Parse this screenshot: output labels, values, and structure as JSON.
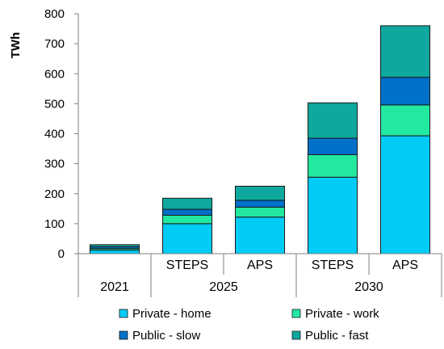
{
  "chart_data": {
    "type": "bar",
    "stacked": true,
    "ylabel": "TWh",
    "xlabel": "",
    "ylim": [
      0,
      800
    ],
    "yticks": [
      0,
      100,
      200,
      300,
      400,
      500,
      600,
      700,
      800
    ],
    "grid": false,
    "legend_position": "bottom",
    "groups": [
      {
        "label": "2021",
        "categories": [
          ""
        ]
      },
      {
        "label": "2025",
        "categories": [
          "STEPS",
          "APS"
        ]
      },
      {
        "label": "2030",
        "categories": [
          "STEPS",
          "APS"
        ]
      }
    ],
    "series": [
      {
        "name": "Private - home",
        "color": "#00CCF5",
        "values": [
          12,
          100,
          122,
          255,
          393
        ]
      },
      {
        "name": "Private - work",
        "color": "#22E8A0",
        "values": [
          5,
          28,
          33,
          75,
          103
        ]
      },
      {
        "name": "Public - slow",
        "color": "#0070C8",
        "values": [
          6,
          20,
          23,
          55,
          92
        ]
      },
      {
        "name": "Public - fast",
        "color": "#0FA89E",
        "values": [
          7,
          37,
          47,
          118,
          172
        ]
      }
    ]
  }
}
